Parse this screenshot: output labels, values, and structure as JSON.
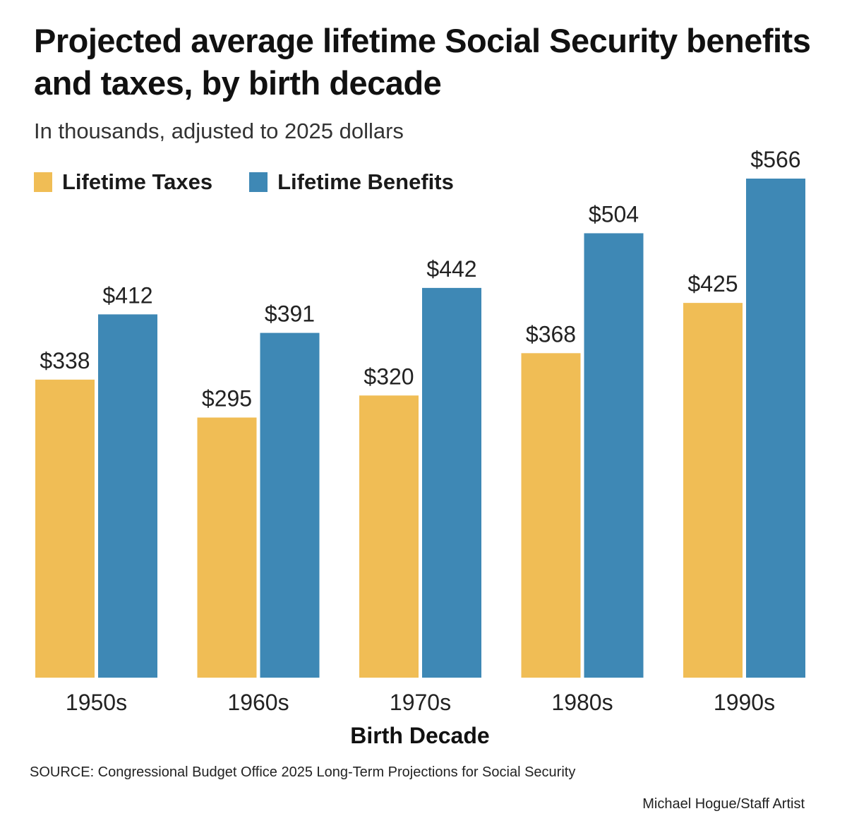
{
  "chart_data": {
    "type": "bar",
    "title": "Projected average lifetime Social Security benefits and taxes, by birth decade",
    "subtitle": "In thousands, adjusted to 2025 dollars",
    "xlabel": "Birth Decade",
    "ylabel": "",
    "categories": [
      "1950s",
      "1960s",
      "1970s",
      "1980s",
      "1990s"
    ],
    "series": [
      {
        "name": "Lifetime Taxes",
        "color": "#f0bd55",
        "values": [
          338,
          295,
          320,
          368,
          425
        ],
        "labels": [
          "$338",
          "$295",
          "$320",
          "$368",
          "$425"
        ]
      },
      {
        "name": "Lifetime Benefits",
        "color": "#3e88b5",
        "values": [
          412,
          391,
          442,
          504,
          566
        ],
        "labels": [
          "$412",
          "$391",
          "$442",
          "$504",
          "$566"
        ]
      }
    ],
    "ylim": [
      0,
      566
    ],
    "grid": false,
    "legend_position": "top-left",
    "source": "SOURCE: Congressional Budget Office 2025 Long-Term Projections for Social Security",
    "credit": "Michael Hogue/Staff Artist"
  }
}
